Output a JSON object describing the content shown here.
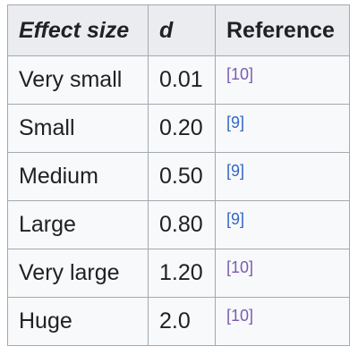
{
  "table": {
    "headers": [
      "Effect size",
      "d",
      "Reference"
    ],
    "rows": [
      {
        "effect": "Very small",
        "d": "0.01",
        "ref": "[10]",
        "visited": true
      },
      {
        "effect": "Small",
        "d": "0.20",
        "ref": "[9]",
        "visited": false
      },
      {
        "effect": "Medium",
        "d": "0.50",
        "ref": "[9]",
        "visited": false
      },
      {
        "effect": "Large",
        "d": "0.80",
        "ref": "[9]",
        "visited": false
      },
      {
        "effect": "Very large",
        "d": "1.20",
        "ref": "[10]",
        "visited": true
      },
      {
        "effect": "Huge",
        "d": "2.0",
        "ref": "[10]",
        "visited": true
      }
    ]
  },
  "colors": {
    "link": "#3366cc",
    "visited_link": "#795cb2",
    "header_bg": "#eaecf0",
    "cell_bg": "#f8f9fa",
    "border": "#a2a9b1",
    "text": "#202122"
  }
}
